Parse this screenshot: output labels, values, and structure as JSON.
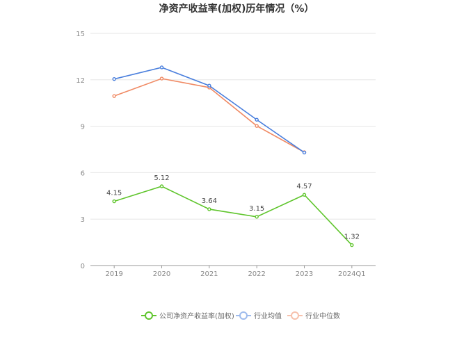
{
  "chart_data": {
    "type": "line",
    "title": "净资产收益率(加权)历年情况（%）",
    "xlabel": "",
    "ylabel": "",
    "categories": [
      "2019",
      "2020",
      "2021",
      "2022",
      "2023",
      "2024Q1"
    ],
    "ylim": [
      0,
      15
    ],
    "yticks": [
      0,
      3,
      6,
      9,
      12,
      15
    ],
    "grid": true,
    "legend_position": "bottom",
    "series": [
      {
        "name": "公司净资产收益率(加权)",
        "color": "#5fc52c",
        "values": [
          4.15,
          5.12,
          3.64,
          3.15,
          4.57,
          1.32
        ],
        "labels": true
      },
      {
        "name": "行业均值",
        "color": "#4a7fdd",
        "values": [
          12.05,
          12.8,
          11.62,
          9.42,
          7.3,
          null
        ],
        "labels": false
      },
      {
        "name": "行业中位数",
        "color": "#f08a64",
        "values": [
          10.95,
          12.08,
          11.5,
          9.02,
          7.32,
          null
        ],
        "labels": false
      }
    ]
  }
}
